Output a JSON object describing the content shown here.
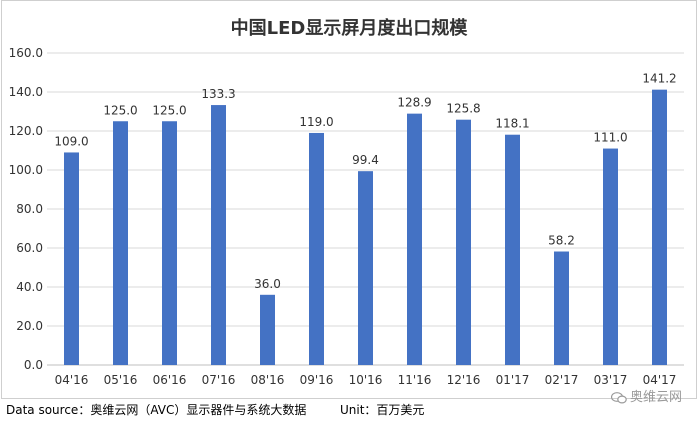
{
  "chart_data": {
    "type": "bar",
    "title": "中国LED显示屏月度出口规模",
    "categories": [
      "04'16",
      "05'16",
      "06'16",
      "07'16",
      "08'16",
      "09'16",
      "10'16",
      "11'16",
      "12'16",
      "01'17",
      "02'17",
      "03'17",
      "04'17"
    ],
    "values": [
      109.0,
      125.0,
      125.0,
      133.3,
      36.0,
      119.0,
      99.4,
      128.9,
      125.8,
      118.1,
      58.2,
      111.0,
      141.2
    ],
    "value_labels": [
      "109.0",
      "125.0",
      "125.0",
      "133.3",
      "36.0",
      "119.0",
      "99.4",
      "128.9",
      "125.8",
      "118.1",
      "58.2",
      "111.0",
      "141.2"
    ],
    "ylim": [
      0,
      160
    ],
    "yticks": [
      "0.0",
      "20.0",
      "40.0",
      "60.0",
      "80.0",
      "100.0",
      "120.0",
      "140.0",
      "160.0"
    ],
    "grid": true,
    "bar_color": "#4472c4"
  },
  "footer": {
    "source": "Data source：奥维云网（AVC）显示器件与系统大数据",
    "unit": "Unit：百万美元"
  },
  "watermark": {
    "text": "奥维云网"
  }
}
